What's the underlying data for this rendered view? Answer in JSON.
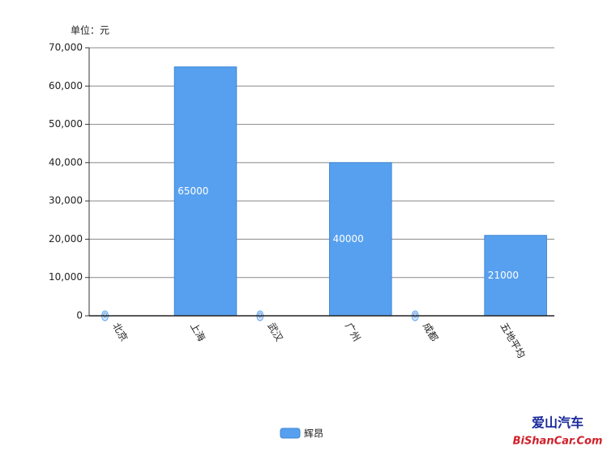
{
  "chart_data": {
    "type": "bar",
    "unit_label": "单位：元",
    "categories": [
      "北京",
      "上海",
      "武汉",
      "广州",
      "成都",
      "五地平均"
    ],
    "series": [
      {
        "name": "辉昂",
        "color": "#57a0ef",
        "values": [
          0,
          65000,
          0,
          40000,
          0,
          21000
        ]
      }
    ],
    "ylim": [
      0,
      70000
    ],
    "yticks": [
      0,
      {
        "value": 10000,
        "label": "10,000"
      },
      {
        "value": 20000,
        "label": "20,000"
      },
      {
        "value": 30000,
        "label": "30,000"
      },
      {
        "value": 40000,
        "label": "40,000"
      },
      {
        "value": 50000,
        "label": "50,000"
      },
      {
        "value": 60000,
        "label": "60,000"
      },
      {
        "value": 70000,
        "label": "70,000"
      }
    ],
    "grid": true,
    "legend": "bottom",
    "watermark": {
      "title": "爱山汽车",
      "url": "BiShanCar.Com"
    }
  }
}
